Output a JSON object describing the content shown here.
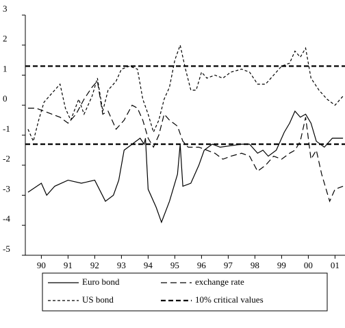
{
  "chart_data": {
    "type": "line",
    "xlim": [
      1989.9,
      2001.9
    ],
    "ylim": [
      -5,
      3
    ],
    "yticks": [
      -5,
      -4,
      -3,
      -2,
      -1,
      0,
      1,
      2,
      3
    ],
    "xticks": [
      {
        "value": 1990.5,
        "label": "90"
      },
      {
        "value": 1991.5,
        "label": "91"
      },
      {
        "value": 1992.5,
        "label": "92"
      },
      {
        "value": 1993.5,
        "label": "93"
      },
      {
        "value": 1994.5,
        "label": "94"
      },
      {
        "value": 1995.5,
        "label": "95"
      },
      {
        "value": 1996.5,
        "label": "96"
      },
      {
        "value": 1997.5,
        "label": "97"
      },
      {
        "value": 1998.5,
        "label": "98"
      },
      {
        "value": 1999.5,
        "label": "99"
      },
      {
        "value": 2000.5,
        "label": "00"
      },
      {
        "value": 2001.5,
        "label": "01"
      }
    ],
    "series": [
      {
        "name": "Euro bond",
        "color": "#000000",
        "dash": "solid",
        "x": [
          1990.0,
          1990.5,
          1990.7,
          1991.0,
          1991.5,
          1992.0,
          1992.5,
          1992.9,
          1993.2,
          1993.4,
          1993.6,
          1993.9,
          1994.2,
          1994.35,
          1994.4,
          1994.5,
          1994.8,
          1995.0,
          1995.3,
          1995.6,
          1995.7,
          1995.8,
          1996.1,
          1996.4,
          1996.6,
          1996.9,
          1997.2,
          1997.6,
          1998.0,
          1998.3,
          1998.6,
          1998.8,
          1999.0,
          1999.3,
          1999.6,
          1999.8,
          2000.0,
          2000.2,
          2000.4,
          2000.6,
          2000.8,
          2001.1,
          2001.4,
          2001.8
        ],
        "values": [
          -2.9,
          -2.6,
          -3.0,
          -2.7,
          -2.5,
          -2.6,
          -2.5,
          -3.2,
          -3.0,
          -2.5,
          -1.5,
          -1.3,
          -1.1,
          -1.3,
          -1.1,
          -2.8,
          -3.4,
          -3.9,
          -3.2,
          -2.3,
          -1.3,
          -2.7,
          -2.6,
          -2.0,
          -1.5,
          -1.3,
          -1.4,
          -1.35,
          -1.3,
          -1.3,
          -1.6,
          -1.5,
          -1.7,
          -1.5,
          -0.9,
          -0.6,
          -0.2,
          -0.4,
          -0.3,
          -0.6,
          -1.2,
          -1.4,
          -1.1,
          -1.1
        ]
      },
      {
        "name": "exchange rate",
        "color": "#000000",
        "dash": "long",
        "x": [
          1990.0,
          1990.3,
          1990.6,
          1990.9,
          1991.2,
          1991.5,
          1991.8,
          1992.1,
          1992.4,
          1992.6,
          1992.8,
          1993.0,
          1993.3,
          1993.6,
          1993.9,
          1994.1,
          1994.3,
          1994.5,
          1994.7,
          1994.9,
          1995.1,
          1995.3,
          1995.6,
          1995.8,
          1996.0,
          1996.4,
          1996.7,
          1997.0,
          1997.3,
          1997.6,
          1998.0,
          1998.3,
          1998.6,
          1998.9,
          1999.2,
          1999.5,
          1999.8,
          2000.0,
          2000.2,
          2000.4,
          2000.6,
          2000.8,
          2001.0,
          2001.3,
          2001.5,
          2001.8
        ],
        "values": [
          -0.1,
          -0.1,
          -0.2,
          -0.3,
          -0.4,
          -0.6,
          -0.3,
          0.2,
          0.6,
          0.8,
          -0.3,
          -0.2,
          -0.8,
          -0.5,
          0.0,
          -0.1,
          -0.5,
          -1.1,
          -1.4,
          -1.0,
          -0.3,
          -0.5,
          -0.7,
          -1.2,
          -1.4,
          -1.4,
          -1.5,
          -1.6,
          -1.8,
          -1.7,
          -1.6,
          -1.7,
          -2.2,
          -2.0,
          -1.7,
          -1.8,
          -1.6,
          -1.5,
          -1.2,
          -0.4,
          -1.8,
          -1.5,
          -2.3,
          -3.2,
          -2.8,
          -2.7
        ]
      },
      {
        "name": "US bond",
        "color": "#000000",
        "dash": "short",
        "x": [
          1990.0,
          1990.2,
          1990.4,
          1990.6,
          1990.8,
          1991.0,
          1991.2,
          1991.4,
          1991.6,
          1991.9,
          1992.1,
          1992.4,
          1992.6,
          1992.8,
          1993.0,
          1993.3,
          1993.5,
          1993.8,
          1994.1,
          1994.3,
          1994.5,
          1994.7,
          1994.9,
          1995.1,
          1995.3,
          1995.5,
          1995.7,
          1995.9,
          1996.1,
          1996.3,
          1996.5,
          1996.7,
          1997.0,
          1997.3,
          1997.6,
          1998.0,
          1998.3,
          1998.6,
          1998.9,
          1999.2,
          1999.5,
          1999.8,
          2000.0,
          2000.2,
          2000.4,
          2000.6,
          2000.9,
          2001.2,
          2001.5,
          2001.8
        ],
        "values": [
          -0.8,
          -1.2,
          -0.5,
          0.1,
          0.3,
          0.5,
          0.7,
          -0.1,
          -0.5,
          0.2,
          -0.3,
          0.3,
          0.9,
          -0.2,
          0.5,
          0.8,
          1.2,
          1.3,
          1.2,
          0.2,
          -0.3,
          -0.9,
          -0.5,
          0.2,
          0.6,
          1.5,
          2.0,
          1.2,
          0.5,
          0.5,
          1.1,
          0.9,
          1.0,
          0.9,
          1.1,
          1.2,
          1.1,
          0.7,
          0.7,
          1.0,
          1.3,
          1.4,
          1.8,
          1.6,
          1.9,
          0.9,
          0.5,
          0.2,
          0.0,
          0.3
        ]
      }
    ],
    "critical_values": {
      "name": "10% critical values",
      "color": "#000000",
      "values": [
        1.3,
        -1.3
      ]
    }
  }
}
